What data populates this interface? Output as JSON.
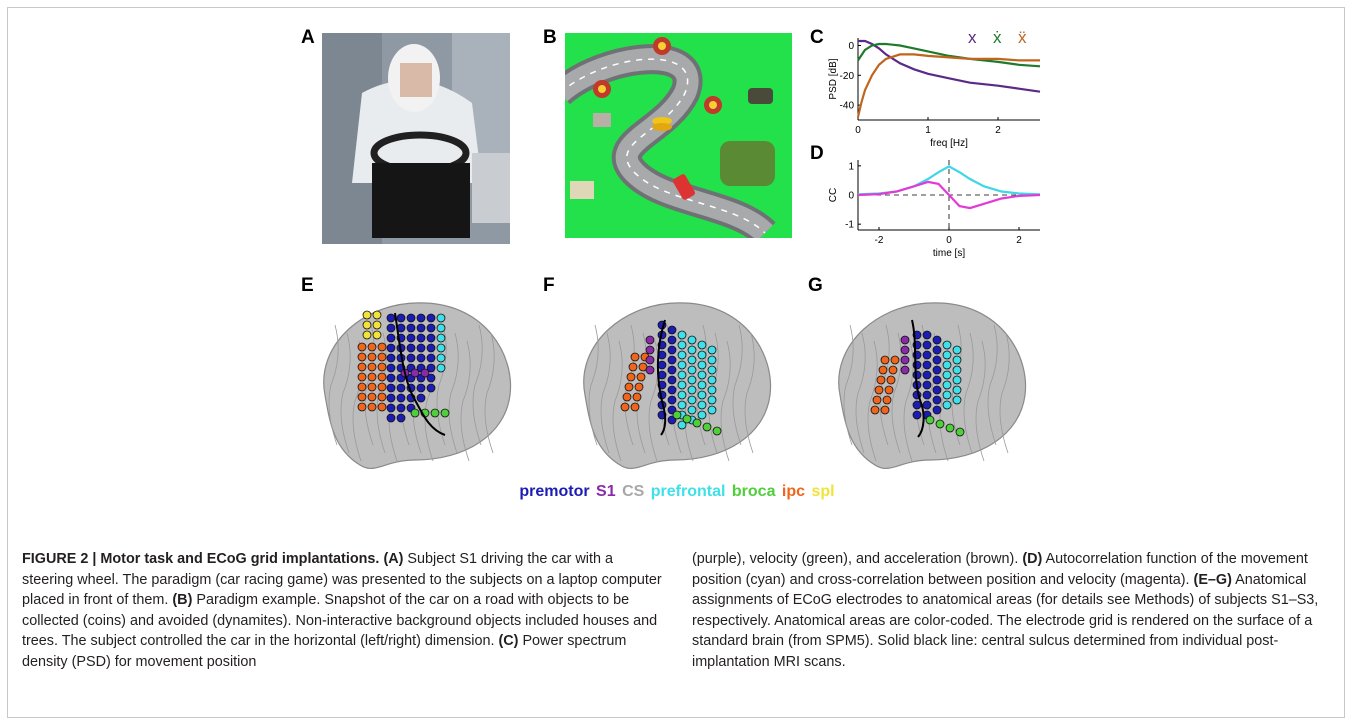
{
  "panels": {
    "A": "A",
    "B": "B",
    "C": "C",
    "D": "D",
    "E": "E",
    "F": "F",
    "G": "G"
  },
  "chart_data": [
    {
      "type": "line",
      "panel": "C",
      "xlabel": "freq [Hz]",
      "ylabel": "PSD [dB]",
      "xticks": [
        "0",
        "1",
        "2"
      ],
      "yticks": [
        "0",
        "-20",
        "-40"
      ],
      "xlim": [
        0,
        2.6
      ],
      "ylim": [
        -50,
        5
      ],
      "legend_glyphs": [
        "x",
        "ẋ",
        "ẍ"
      ],
      "series": [
        {
          "color": "#5b2a86",
          "x": [
            0,
            0.1,
            0.2,
            0.3,
            0.4,
            0.6,
            0.8,
            1.0,
            1.3,
            1.6,
            2.0,
            2.3,
            2.6
          ],
          "y": [
            3,
            3,
            1,
            -2,
            -6,
            -12,
            -16,
            -19,
            -22,
            -25,
            -27,
            -29,
            -31
          ]
        },
        {
          "color": "#1f7a2b",
          "x": [
            0,
            0.1,
            0.2,
            0.3,
            0.4,
            0.6,
            0.8,
            1.0,
            1.3,
            1.6,
            2.0,
            2.3,
            2.6
          ],
          "y": [
            -10,
            -3,
            0,
            1,
            1,
            0,
            -2,
            -4,
            -7,
            -9,
            -11,
            -13,
            -14
          ]
        },
        {
          "color": "#c0651e",
          "x": [
            0,
            0.05,
            0.1,
            0.2,
            0.3,
            0.4,
            0.6,
            0.8,
            1.0,
            1.3,
            1.6,
            2.0,
            2.3,
            2.6
          ],
          "y": [
            -48,
            -38,
            -30,
            -20,
            -13,
            -9,
            -6,
            -6,
            -7,
            -8,
            -9,
            -9,
            -10,
            -10
          ]
        }
      ]
    },
    {
      "type": "line",
      "panel": "D",
      "xlabel": "time [s]",
      "ylabel": "CC",
      "xticks": [
        "-2",
        "0",
        "2"
      ],
      "yticks": [
        "1",
        "0",
        "-1"
      ],
      "xlim": [
        -2.6,
        2.6
      ],
      "ylim": [
        -1.2,
        1.2
      ],
      "series": [
        {
          "color": "#3ed6e8",
          "x": [
            -2.6,
            -2.0,
            -1.5,
            -1.0,
            -0.6,
            -0.3,
            0,
            0.3,
            0.6,
            1.0,
            1.5,
            2.0,
            2.6
          ],
          "y": [
            0.02,
            0.05,
            0.12,
            0.3,
            0.55,
            0.78,
            0.98,
            0.78,
            0.55,
            0.3,
            0.12,
            0.05,
            0.02
          ]
        },
        {
          "color": "#e23ad6",
          "x": [
            -2.6,
            -2.0,
            -1.5,
            -1.0,
            -0.6,
            -0.3,
            0,
            0.3,
            0.6,
            1.0,
            1.5,
            2.0,
            2.6
          ],
          "y": [
            0.0,
            0.03,
            0.12,
            0.3,
            0.45,
            0.38,
            0.0,
            -0.38,
            -0.45,
            -0.3,
            -0.12,
            -0.03,
            0.0
          ]
        }
      ]
    }
  ],
  "legend": [
    {
      "text": "premotor",
      "color": "#1d1db3"
    },
    {
      "text": "S1",
      "color": "#8a2aa8"
    },
    {
      "text": "CS",
      "color": "#a8a8a8"
    },
    {
      "text": "prefrontal",
      "color": "#3fe0e8"
    },
    {
      "text": "broca",
      "color": "#4fcf3a"
    },
    {
      "text": "ipc",
      "color": "#f0651c"
    },
    {
      "text": "spl",
      "color": "#f2e33a"
    }
  ],
  "caption": {
    "col1": [
      {
        "b": "FIGURE 2 | Motor task and ECoG grid implantations.",
        "t": ""
      },
      {
        "b": "(A)",
        "t": " Subject S1 driving the car with a steering wheel. The paradigm (car racing game) was presented to the subjects on a laptop computer placed in front of them. "
      },
      {
        "b": "(B)",
        "t": " Paradigm example. Snapshot of the car on a road with objects to be collected (coins) and avoided (dynamites). Non-interactive background objects included houses and trees. The subject controlled the car in the horizontal (left/right) dimension. "
      },
      {
        "b": "(C)",
        "t": " Power spectrum density (PSD) for movement position"
      }
    ],
    "col2": [
      {
        "b": "",
        "t": "(purple), velocity (green), and acceleration (brown). "
      },
      {
        "b": "(D)",
        "t": " Autocorrelation function of the movement position (cyan) and cross-correlation between position and velocity (magenta). "
      },
      {
        "b": "(E–G)",
        "t": " Anatomical assignments of ECoG electrodes to anatomical areas (for details see Methods) of subjects S1–S3, respectively. Anatomical areas are color-coded. The electrode grid is rendered on the surface of a standard brain (from SPM5). Solid black line: central sulcus determined from individual post-implantation MRI scans."
      }
    ]
  }
}
